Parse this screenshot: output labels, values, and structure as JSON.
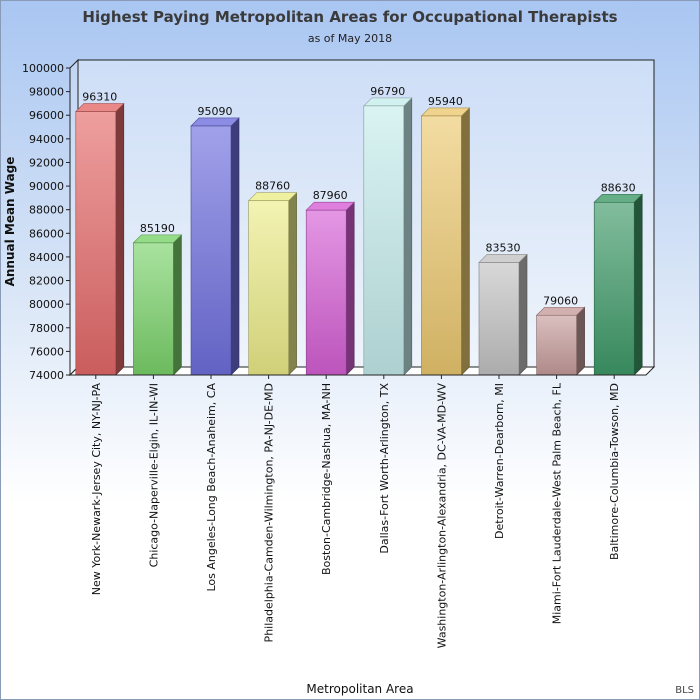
{
  "chart_data": {
    "type": "bar",
    "title": "Highest Paying Metropolitan Areas for Occupational Therapists",
    "subtitle": "as of May 2018",
    "xlabel": "Metropolitan Area",
    "ylabel": "Annual Mean Wage",
    "ylim": [
      74000,
      100000
    ],
    "yticks": [
      74000,
      76000,
      78000,
      80000,
      82000,
      84000,
      86000,
      88000,
      90000,
      92000,
      94000,
      96000,
      98000,
      100000
    ],
    "grid": false,
    "legend": "none",
    "categories": [
      "New York-Newark-Jersey City, NY-NJ-PA",
      "Chicago-Naperville-Elgin, IL-IN-WI",
      "Los Angeles-Long Beach-Anaheim, CA",
      "Philadelphia-Camden-Wilmington, PA-NJ-DE-MD",
      "Boston-Cambridge-Nashua, MA-NH",
      "Dallas-Fort Worth-Arlington, TX",
      "Washington-Arlington-Alexandria, DC-VA-MD-WV",
      "Detroit-Warren-Dearborn, MI",
      "Miami-Fort Lauderdale-West Palm Beach, FL",
      "Baltimore-Columbia-Towson, MD"
    ],
    "values": [
      96310,
      85190,
      95090,
      88760,
      87960,
      96790,
      95940,
      83530,
      79060,
      88630
    ],
    "colors": [
      "#e56a6a",
      "#7bd36b",
      "#6f6fdf",
      "#ecec8a",
      "#d65fd6",
      "#c6ecec",
      "#ecc970",
      "#c3c3c3",
      "#c79c9c",
      "#3f9a68"
    ],
    "source": "BLS"
  }
}
